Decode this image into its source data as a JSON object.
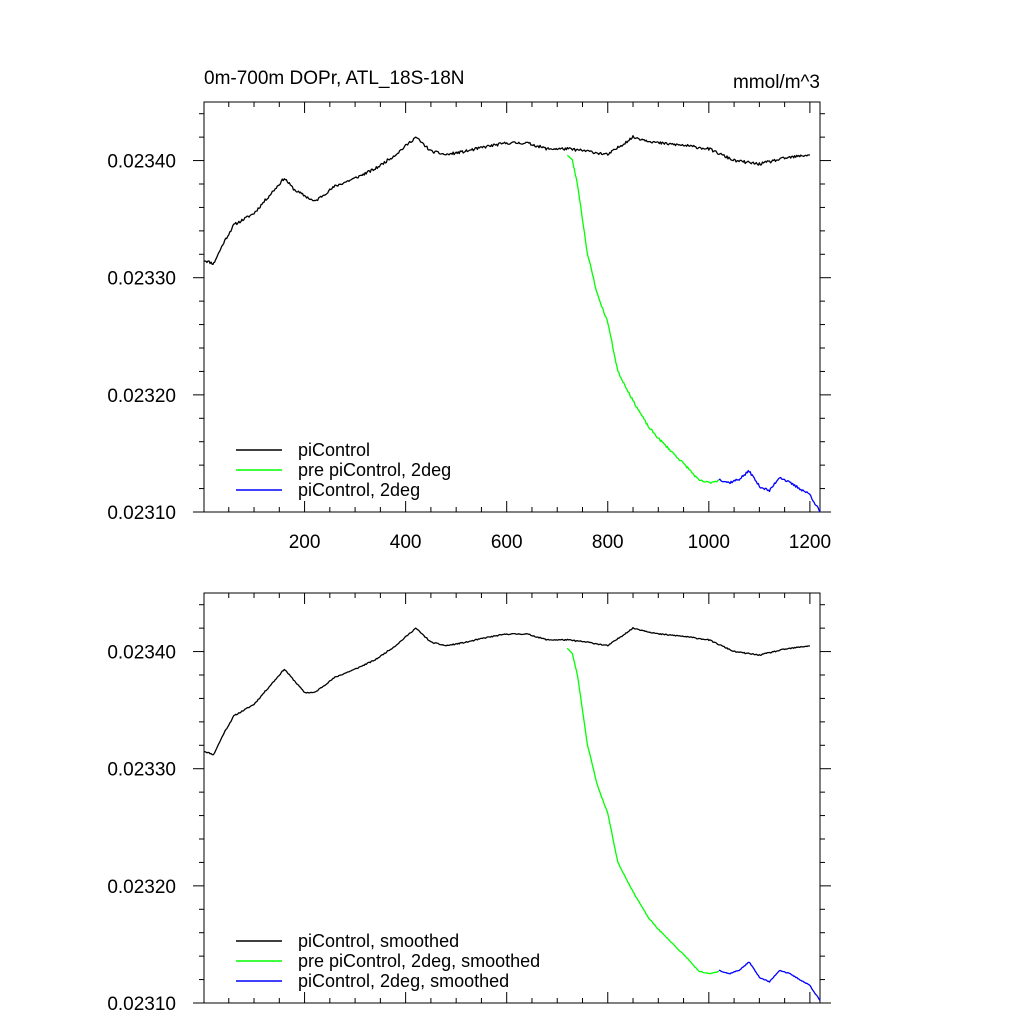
{
  "figure": {
    "title_left": "0m-700m DOPr, ATL_18S-18N",
    "title_right": "mmol/m^3"
  },
  "chart_data": [
    {
      "type": "line",
      "xlim": [
        1,
        1220
      ],
      "ylim": [
        0.0231,
        0.02345
      ],
      "x_ticks": [
        200,
        400,
        600,
        800,
        1000,
        1200
      ],
      "x_tick_labels": [
        "200",
        "400",
        "600",
        "800",
        "1000",
        "1200"
      ],
      "y_ticks": [
        0.0231,
        0.0232,
        0.0233,
        0.0234
      ],
      "y_tick_labels": [
        "0.02310",
        "0.02320",
        "0.02330",
        "0.02340"
      ],
      "legend_position": "bottom-left",
      "series": [
        {
          "name": "piControl",
          "color": "#000000",
          "noise": 1.2e-06,
          "seed": 11,
          "x": [
            1,
            20,
            40,
            60,
            80,
            100,
            130,
            160,
            180,
            200,
            220,
            260,
            300,
            340,
            380,
            420,
            450,
            480,
            520,
            560,
            600,
            640,
            680,
            720,
            760,
            800,
            850,
            900,
            950,
            1000,
            1050,
            1100,
            1150,
            1200
          ],
          "y": [
            0.023315,
            0.023312,
            0.02333,
            0.023345,
            0.02335,
            0.023355,
            0.02337,
            0.023385,
            0.023375,
            0.02337,
            0.023365,
            0.023378,
            0.023385,
            0.023393,
            0.023405,
            0.02342,
            0.023408,
            0.023405,
            0.023408,
            0.023412,
            0.023415,
            0.023415,
            0.02341,
            0.02341,
            0.023408,
            0.023405,
            0.02342,
            0.023415,
            0.023413,
            0.02341,
            0.0234,
            0.023397,
            0.023402,
            0.023405
          ]
        },
        {
          "name": "pre piControl, 2deg",
          "color": "#00ff00",
          "noise": 1e-06,
          "seed": 23,
          "x": [
            720,
            730,
            740,
            760,
            780,
            800,
            820,
            850,
            880,
            900,
            930,
            960,
            980,
            1000,
            1020
          ],
          "y": [
            0.023405,
            0.0234,
            0.02338,
            0.02332,
            0.023285,
            0.023262,
            0.02322,
            0.023195,
            0.023173,
            0.023163,
            0.02315,
            0.023137,
            0.023127,
            0.023125,
            0.023127
          ]
        },
        {
          "name": "piControl, 2deg",
          "color": "#0000ff",
          "noise": 1.1e-06,
          "seed": 37,
          "x": [
            1020,
            1040,
            1060,
            1080,
            1100,
            1120,
            1140,
            1160,
            1180,
            1200,
            1220
          ],
          "y": [
            0.023128,
            0.023125,
            0.023128,
            0.023135,
            0.023122,
            0.023118,
            0.02313,
            0.023125,
            0.02312,
            0.023115,
            0.0231
          ]
        }
      ]
    },
    {
      "type": "line",
      "xlim": [
        1,
        1220
      ],
      "ylim": [
        0.0231,
        0.02345
      ],
      "x_ticks": [
        200,
        400,
        600,
        800,
        1000,
        1200
      ],
      "x_tick_labels": [],
      "y_ticks": [
        0.0231,
        0.0232,
        0.0233,
        0.0234
      ],
      "y_tick_labels": [
        "0.02310",
        "0.02320",
        "0.02330",
        "0.02340"
      ],
      "legend_position": "bottom-left",
      "series": [
        {
          "name": "piControl, smoothed",
          "color": "#000000",
          "noise": 5e-07,
          "seed": 11,
          "x": [
            1,
            20,
            40,
            60,
            80,
            100,
            130,
            160,
            180,
            200,
            220,
            260,
            300,
            340,
            380,
            420,
            450,
            480,
            520,
            560,
            600,
            640,
            680,
            720,
            760,
            800,
            850,
            900,
            950,
            1000,
            1050,
            1100,
            1150,
            1200
          ],
          "y": [
            0.023315,
            0.023312,
            0.02333,
            0.023345,
            0.02335,
            0.023355,
            0.02337,
            0.023385,
            0.023375,
            0.023365,
            0.023365,
            0.023378,
            0.023385,
            0.023393,
            0.023405,
            0.02342,
            0.023408,
            0.023405,
            0.023408,
            0.023412,
            0.023415,
            0.023415,
            0.02341,
            0.02341,
            0.023408,
            0.023405,
            0.02342,
            0.023415,
            0.023413,
            0.02341,
            0.0234,
            0.023397,
            0.023402,
            0.023405
          ]
        },
        {
          "name": "pre piControl, 2deg, smoothed",
          "color": "#00ff00",
          "noise": 4e-07,
          "seed": 23,
          "x": [
            720,
            730,
            740,
            760,
            780,
            800,
            820,
            850,
            880,
            900,
            930,
            960,
            980,
            1000,
            1020
          ],
          "y": [
            0.023403,
            0.023398,
            0.02338,
            0.02332,
            0.023285,
            0.023262,
            0.02322,
            0.023195,
            0.023173,
            0.023163,
            0.02315,
            0.023137,
            0.023127,
            0.023125,
            0.023127
          ]
        },
        {
          "name": "piControl, 2deg, smoothed",
          "color": "#0000ff",
          "noise": 4e-07,
          "seed": 37,
          "x": [
            1020,
            1040,
            1060,
            1080,
            1100,
            1120,
            1140,
            1160,
            1180,
            1200,
            1220
          ],
          "y": [
            0.023128,
            0.023125,
            0.023128,
            0.023135,
            0.023122,
            0.023118,
            0.023128,
            0.023125,
            0.02312,
            0.023115,
            0.023102
          ]
        }
      ]
    }
  ]
}
